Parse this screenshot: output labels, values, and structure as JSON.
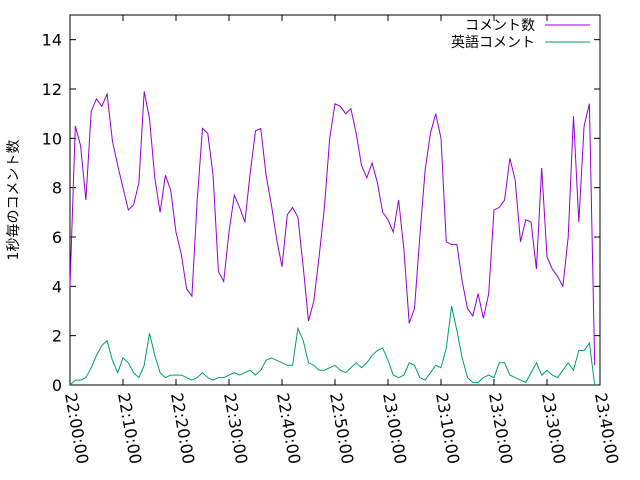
{
  "chart_data": {
    "type": "line",
    "title": "",
    "xlabel": "",
    "ylabel": "1秒毎のコメント数",
    "xlim": [
      "22:00:00",
      "23:40:00"
    ],
    "ylim": [
      0,
      15
    ],
    "grid": false,
    "legend_position": "top-right",
    "x_ticks": [
      "22:00:00",
      "22:10:00",
      "22:20:00",
      "22:30:00",
      "22:40:00",
      "22:50:00",
      "23:00:00",
      "23:10:00",
      "23:20:00",
      "23:30:00",
      "23:40:00"
    ],
    "y_ticks": [
      0,
      2,
      4,
      6,
      8,
      10,
      12,
      14
    ],
    "series": [
      {
        "name": "コメント数",
        "color": "#9400d3",
        "points": [
          [
            "22:00:00",
            4.0
          ],
          [
            "22:01:00",
            10.5
          ],
          [
            "22:02:00",
            9.7
          ],
          [
            "22:03:00",
            7.5
          ],
          [
            "22:04:00",
            11.1
          ],
          [
            "22:05:00",
            11.6
          ],
          [
            "22:06:00",
            11.3
          ],
          [
            "22:07:00",
            11.8
          ],
          [
            "22:08:00",
            9.9
          ],
          [
            "22:09:00",
            8.9
          ],
          [
            "22:10:00",
            8.0
          ],
          [
            "22:11:00",
            7.1
          ],
          [
            "22:12:00",
            7.3
          ],
          [
            "22:13:00",
            8.2
          ],
          [
            "22:14:00",
            11.9
          ],
          [
            "22:15:00",
            10.8
          ],
          [
            "22:16:00",
            8.4
          ],
          [
            "22:17:00",
            7.0
          ],
          [
            "22:18:00",
            8.5
          ],
          [
            "22:19:00",
            7.9
          ],
          [
            "22:20:00",
            6.2
          ],
          [
            "22:21:00",
            5.3
          ],
          [
            "22:22:00",
            3.9
          ],
          [
            "22:23:00",
            3.6
          ],
          [
            "22:24:00",
            7.5
          ],
          [
            "22:25:00",
            10.4
          ],
          [
            "22:26:00",
            10.2
          ],
          [
            "22:27:00",
            8.5
          ],
          [
            "22:28:00",
            4.6
          ],
          [
            "22:29:00",
            4.2
          ],
          [
            "22:30:00",
            6.2
          ],
          [
            "22:31:00",
            7.7
          ],
          [
            "22:32:00",
            7.2
          ],
          [
            "22:33:00",
            6.6
          ],
          [
            "22:34:00",
            8.6
          ],
          [
            "22:35:00",
            10.3
          ],
          [
            "22:36:00",
            10.4
          ],
          [
            "22:37:00",
            8.5
          ],
          [
            "22:38:00",
            7.3
          ],
          [
            "22:39:00",
            5.9
          ],
          [
            "22:40:00",
            4.8
          ],
          [
            "22:41:00",
            6.9
          ],
          [
            "22:42:00",
            7.2
          ],
          [
            "22:43:00",
            6.8
          ],
          [
            "22:44:00",
            4.8
          ],
          [
            "22:45:00",
            2.6
          ],
          [
            "22:46:00",
            3.4
          ],
          [
            "22:47:00",
            5.2
          ],
          [
            "22:48:00",
            7.2
          ],
          [
            "22:49:00",
            10.0
          ],
          [
            "22:50:00",
            11.4
          ],
          [
            "22:51:00",
            11.3
          ],
          [
            "22:52:00",
            11.0
          ],
          [
            "22:53:00",
            11.2
          ],
          [
            "22:54:00",
            10.2
          ],
          [
            "22:55:00",
            8.9
          ],
          [
            "22:56:00",
            8.4
          ],
          [
            "22:57:00",
            9.0
          ],
          [
            "22:58:00",
            8.2
          ],
          [
            "22:59:00",
            7.0
          ],
          [
            "23:00:00",
            6.7
          ],
          [
            "23:01:00",
            6.2
          ],
          [
            "23:02:00",
            7.5
          ],
          [
            "23:03:00",
            5.5
          ],
          [
            "23:04:00",
            2.5
          ],
          [
            "23:05:00",
            3.1
          ],
          [
            "23:06:00",
            6.0
          ],
          [
            "23:07:00",
            8.7
          ],
          [
            "23:08:00",
            10.2
          ],
          [
            "23:09:00",
            11.0
          ],
          [
            "23:10:00",
            10.0
          ],
          [
            "23:11:00",
            5.8
          ],
          [
            "23:12:00",
            5.7
          ],
          [
            "23:13:00",
            5.7
          ],
          [
            "23:14:00",
            4.2
          ],
          [
            "23:15:00",
            3.1
          ],
          [
            "23:16:00",
            2.8
          ],
          [
            "23:17:00",
            3.7
          ],
          [
            "23:18:00",
            2.7
          ],
          [
            "23:19:00",
            3.7
          ],
          [
            "23:20:00",
            7.1
          ],
          [
            "23:21:00",
            7.2
          ],
          [
            "23:22:00",
            7.5
          ],
          [
            "23:23:00",
            9.2
          ],
          [
            "23:24:00",
            8.3
          ],
          [
            "23:25:00",
            5.8
          ],
          [
            "23:26:00",
            6.7
          ],
          [
            "23:27:00",
            6.6
          ],
          [
            "23:28:00",
            4.7
          ],
          [
            "23:29:00",
            8.8
          ],
          [
            "23:30:00",
            5.2
          ],
          [
            "23:31:00",
            4.7
          ],
          [
            "23:32:00",
            4.4
          ],
          [
            "23:33:00",
            4.0
          ],
          [
            "23:34:00",
            6.0
          ],
          [
            "23:35:00",
            10.9
          ],
          [
            "23:36:00",
            6.6
          ],
          [
            "23:37:00",
            10.5
          ],
          [
            "23:38:00",
            11.4
          ],
          [
            "23:39:00",
            0.8
          ]
        ]
      },
      {
        "name": "英語コメント",
        "color": "#009e73",
        "points": [
          [
            "22:00:00",
            0.0
          ],
          [
            "22:01:00",
            0.2
          ],
          [
            "22:02:00",
            0.2
          ],
          [
            "22:03:00",
            0.3
          ],
          [
            "22:04:00",
            0.7
          ],
          [
            "22:05:00",
            1.2
          ],
          [
            "22:06:00",
            1.6
          ],
          [
            "22:07:00",
            1.8
          ],
          [
            "22:08:00",
            1.0
          ],
          [
            "22:09:00",
            0.5
          ],
          [
            "22:10:00",
            1.1
          ],
          [
            "22:11:00",
            0.9
          ],
          [
            "22:12:00",
            0.5
          ],
          [
            "22:13:00",
            0.3
          ],
          [
            "22:14:00",
            0.8
          ],
          [
            "22:15:00",
            2.1
          ],
          [
            "22:16:00",
            1.2
          ],
          [
            "22:17:00",
            0.5
          ],
          [
            "22:18:00",
            0.3
          ],
          [
            "22:19:00",
            0.4
          ],
          [
            "22:20:00",
            0.4
          ],
          [
            "22:21:00",
            0.4
          ],
          [
            "22:22:00",
            0.3
          ],
          [
            "22:23:00",
            0.2
          ],
          [
            "22:24:00",
            0.3
          ],
          [
            "22:25:00",
            0.5
          ],
          [
            "22:26:00",
            0.3
          ],
          [
            "22:27:00",
            0.2
          ],
          [
            "22:28:00",
            0.3
          ],
          [
            "22:29:00",
            0.3
          ],
          [
            "22:30:00",
            0.4
          ],
          [
            "22:31:00",
            0.5
          ],
          [
            "22:32:00",
            0.4
          ],
          [
            "22:33:00",
            0.5
          ],
          [
            "22:34:00",
            0.6
          ],
          [
            "22:35:00",
            0.4
          ],
          [
            "22:36:00",
            0.6
          ],
          [
            "22:37:00",
            1.0
          ],
          [
            "22:38:00",
            1.1
          ],
          [
            "22:39:00",
            1.0
          ],
          [
            "22:40:00",
            0.9
          ],
          [
            "22:41:00",
            0.8
          ],
          [
            "22:42:00",
            0.8
          ],
          [
            "22:43:00",
            2.3
          ],
          [
            "22:44:00",
            1.8
          ],
          [
            "22:45:00",
            0.9
          ],
          [
            "22:46:00",
            0.8
          ],
          [
            "22:47:00",
            0.6
          ],
          [
            "22:48:00",
            0.6
          ],
          [
            "22:49:00",
            0.7
          ],
          [
            "22:50:00",
            0.8
          ],
          [
            "22:51:00",
            0.6
          ],
          [
            "22:52:00",
            0.5
          ],
          [
            "22:53:00",
            0.7
          ],
          [
            "22:54:00",
            0.9
          ],
          [
            "22:55:00",
            0.7
          ],
          [
            "22:56:00",
            0.9
          ],
          [
            "22:57:00",
            1.2
          ],
          [
            "22:58:00",
            1.4
          ],
          [
            "22:59:00",
            1.5
          ],
          [
            "23:00:00",
            1.0
          ],
          [
            "23:01:00",
            0.4
          ],
          [
            "23:02:00",
            0.3
          ],
          [
            "23:03:00",
            0.4
          ],
          [
            "23:04:00",
            0.9
          ],
          [
            "23:05:00",
            0.8
          ],
          [
            "23:06:00",
            0.3
          ],
          [
            "23:07:00",
            0.2
          ],
          [
            "23:08:00",
            0.5
          ],
          [
            "23:09:00",
            0.8
          ],
          [
            "23:10:00",
            0.7
          ],
          [
            "23:11:00",
            1.5
          ],
          [
            "23:12:00",
            3.2
          ],
          [
            "23:13:00",
            2.2
          ],
          [
            "23:14:00",
            1.1
          ],
          [
            "23:15:00",
            0.3
          ],
          [
            "23:16:00",
            0.1
          ],
          [
            "23:17:00",
            0.1
          ],
          [
            "23:18:00",
            0.3
          ],
          [
            "23:19:00",
            0.4
          ],
          [
            "23:20:00",
            0.3
          ],
          [
            "23:21:00",
            0.9
          ],
          [
            "23:22:00",
            0.9
          ],
          [
            "23:23:00",
            0.4
          ],
          [
            "23:24:00",
            0.3
          ],
          [
            "23:25:00",
            0.2
          ],
          [
            "23:26:00",
            0.1
          ],
          [
            "23:27:00",
            0.5
          ],
          [
            "23:28:00",
            0.9
          ],
          [
            "23:29:00",
            0.4
          ],
          [
            "23:30:00",
            0.6
          ],
          [
            "23:31:00",
            0.4
          ],
          [
            "23:32:00",
            0.3
          ],
          [
            "23:33:00",
            0.6
          ],
          [
            "23:34:00",
            0.9
          ],
          [
            "23:35:00",
            0.6
          ],
          [
            "23:36:00",
            1.4
          ],
          [
            "23:37:00",
            1.4
          ],
          [
            "23:38:00",
            1.7
          ],
          [
            "23:39:00",
            0.0
          ]
        ]
      }
    ]
  }
}
